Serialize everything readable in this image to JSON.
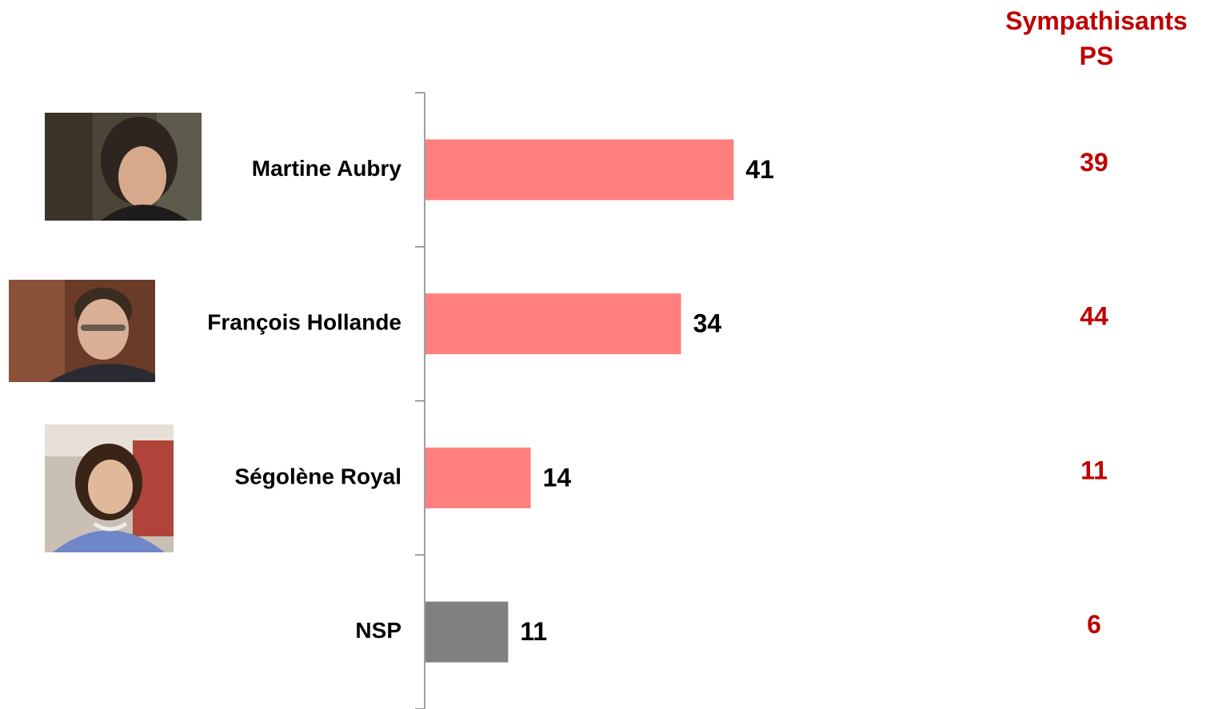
{
  "chart_data": {
    "type": "bar",
    "orientation": "horizontal",
    "categories": [
      "Martine Aubry",
      "François Hollande",
      "Ségolène Royal",
      "NSP"
    ],
    "values": [
      41,
      34,
      14,
      11
    ],
    "series": [
      {
        "values": [
          41,
          34,
          14,
          11
        ]
      }
    ],
    "bar_colors": [
      "#ff7f7f",
      "#ff7f7f",
      "#ff7f7f",
      "#808080"
    ],
    "secondary_column": {
      "title_line1": "Sympathisants",
      "title_line2": "PS",
      "values": [
        39,
        44,
        11,
        6
      ],
      "color": "#c00000"
    },
    "xlim": [
      0,
      100
    ],
    "grid": false,
    "legend": "none"
  },
  "photos": [
    {
      "category": "Martine Aubry",
      "icon": "portrait-photo"
    },
    {
      "category": "François Hollande",
      "icon": "portrait-photo"
    },
    {
      "category": "Ségolène Royal",
      "icon": "portrait-photo"
    }
  ]
}
